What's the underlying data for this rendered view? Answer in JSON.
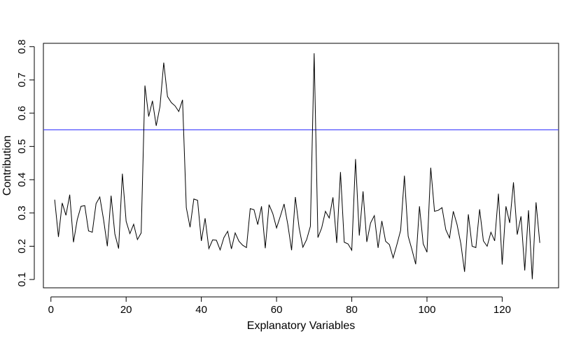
{
  "chart_data": {
    "type": "line",
    "title": "",
    "xlabel": "Explanatory Variables",
    "ylabel": "Contribution",
    "xlim": [
      -2,
      135
    ],
    "ylim": [
      0.075,
      0.81
    ],
    "xticks": [
      0,
      20,
      40,
      60,
      80,
      100,
      120
    ],
    "yticks": [
      0.1,
      0.2,
      0.3,
      0.4,
      0.5,
      0.6,
      0.7,
      0.8
    ],
    "grid": false,
    "legend": "none",
    "line_color": "#000000",
    "threshold": {
      "value": 0.55,
      "color": "#3b3bff"
    },
    "series": [
      {
        "x": [
          1,
          2,
          3,
          4,
          5,
          6,
          7,
          8,
          9,
          10,
          11,
          12,
          13,
          14,
          15,
          16,
          17,
          18,
          19,
          20,
          21,
          22,
          23,
          24,
          25,
          26,
          27,
          28,
          29,
          30,
          31,
          32,
          33,
          34,
          35,
          36,
          37,
          38,
          39,
          40,
          41,
          42,
          43,
          44,
          45,
          46,
          47,
          48,
          49,
          50,
          51,
          52,
          53,
          54,
          55,
          56,
          57,
          58,
          59,
          60,
          61,
          62,
          63,
          64,
          65,
          66,
          67,
          68,
          69,
          70,
          71,
          72,
          73,
          74,
          75,
          76,
          77,
          78,
          79,
          80,
          81,
          82,
          83,
          84,
          85,
          86,
          87,
          88,
          89,
          90,
          91,
          92,
          93,
          94,
          95,
          96,
          97,
          98,
          99,
          100,
          101,
          102,
          103,
          104,
          105,
          106,
          107,
          108,
          109,
          110,
          111,
          112,
          113,
          114,
          115,
          116,
          117,
          118,
          119,
          120,
          121,
          122,
          123,
          124,
          125,
          126,
          127,
          128,
          129,
          130
        ],
        "values": [
          0.34,
          0.228,
          0.33,
          0.293,
          0.355,
          0.212,
          0.28,
          0.32,
          0.322,
          0.246,
          0.242,
          0.328,
          0.348,
          0.28,
          0.2,
          0.352,
          0.237,
          0.193,
          0.418,
          0.275,
          0.238,
          0.266,
          0.22,
          0.24,
          0.683,
          0.59,
          0.637,
          0.562,
          0.62,
          0.752,
          0.65,
          0.632,
          0.622,
          0.605,
          0.64,
          0.316,
          0.257,
          0.342,
          0.338,
          0.216,
          0.284,
          0.193,
          0.219,
          0.218,
          0.189,
          0.226,
          0.245,
          0.192,
          0.24,
          0.215,
          0.203,
          0.196,
          0.313,
          0.31,
          0.265,
          0.32,
          0.194,
          0.325,
          0.298,
          0.255,
          0.29,
          0.327,
          0.265,
          0.188,
          0.348,
          0.255,
          0.197,
          0.22,
          0.26,
          0.78,
          0.226,
          0.255,
          0.305,
          0.285,
          0.347,
          0.21,
          0.423,
          0.212,
          0.207,
          0.188,
          0.462,
          0.232,
          0.365,
          0.213,
          0.27,
          0.292,
          0.195,
          0.276,
          0.215,
          0.205,
          0.165,
          0.205,
          0.248,
          0.412,
          0.23,
          0.19,
          0.146,
          0.32,
          0.207,
          0.182,
          0.436,
          0.305,
          0.308,
          0.316,
          0.25,
          0.225,
          0.305,
          0.265,
          0.208,
          0.123,
          0.296,
          0.2,
          0.196,
          0.311,
          0.216,
          0.2,
          0.242,
          0.216,
          0.358,
          0.145,
          0.32,
          0.27,
          0.392,
          0.235,
          0.29,
          0.127,
          0.308,
          0.101,
          0.332,
          0.21
        ]
      }
    ]
  }
}
